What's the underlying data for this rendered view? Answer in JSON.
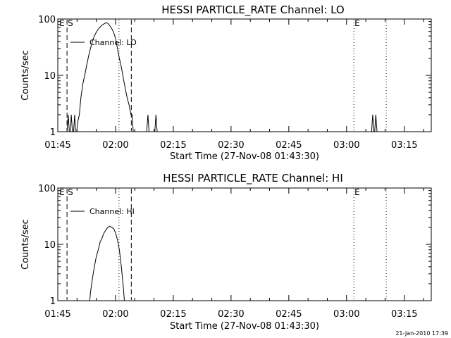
{
  "chart_data": [
    {
      "type": "line",
      "title": "HESSI PARTICLE_RATE Channel: LO",
      "ylabel": "Counts/sec",
      "xlabel": "Start Time (27-Nov-08 01:43:30)",
      "yscale": "log",
      "ylim": [
        1,
        100
      ],
      "yticks": [
        {
          "value": 1,
          "label": "1"
        },
        {
          "value": 10,
          "label": "10"
        },
        {
          "value": 100,
          "label": "100"
        }
      ],
      "xlim_minutes": [
        105,
        202
      ],
      "xticks": [
        {
          "value": 105,
          "label": "01:45"
        },
        {
          "value": 120,
          "label": "02:00"
        },
        {
          "value": 135,
          "label": "02:15"
        },
        {
          "value": 150,
          "label": "02:30"
        },
        {
          "value": 165,
          "label": "02:45"
        },
        {
          "value": 180,
          "label": "03:00"
        },
        {
          "value": 195,
          "label": "03:15"
        }
      ],
      "legend": {
        "label": "Channel: LO",
        "position": "top-left"
      },
      "markers": [
        {
          "label": "E",
          "x": 105.2,
          "style": "none"
        },
        {
          "label": "S",
          "x": 107.4,
          "style": "dashed"
        },
        {
          "label": "",
          "x": 120.9,
          "style": "dotted"
        },
        {
          "label": "",
          "x": 124.1,
          "style": "dashed"
        },
        {
          "label": "E",
          "x": 181.9,
          "style": "dotted"
        },
        {
          "label": "",
          "x": 190.3,
          "style": "dotted"
        }
      ],
      "series": [
        {
          "x": [
            107.4,
            107.7,
            108.0,
            108.3,
            108.5,
            108.8,
            109.1,
            109.4,
            109.6,
            109.9,
            110.2,
            110.6,
            111.0,
            111.5,
            112.0,
            112.5,
            113.0,
            113.5,
            114.0,
            114.5,
            115.0,
            115.5,
            116.0,
            116.5,
            117.0,
            117.5,
            118.0,
            118.5,
            119.0,
            119.5,
            120.0,
            120.5,
            121.0,
            121.5,
            122.0,
            122.5,
            123.0,
            123.5,
            124.0,
            124.3,
            124.6,
            124.9,
            125.2,
            125.5,
            125.8,
            126.1,
            126.4,
            126.7,
            127.0,
            127.3,
            128.1,
            128.4,
            128.7,
            130.2,
            130.5,
            130.8,
            170.0,
            186.5,
            186.8,
            187.1,
            187.3,
            187.6,
            187.9
          ],
          "y": [
            1,
            2,
            1,
            1,
            2,
            1,
            1,
            2,
            1,
            1,
            1.5,
            2,
            4,
            7,
            10,
            15,
            22,
            30,
            40,
            50,
            58,
            66,
            72,
            78,
            82,
            86,
            84,
            76,
            68,
            58,
            45,
            30,
            20,
            14,
            9,
            6,
            4,
            3,
            2,
            2,
            1,
            1,
            1,
            1,
            1,
            1,
            1,
            1,
            1,
            1,
            1,
            2,
            1,
            1,
            2,
            1,
            1,
            1,
            2,
            1,
            1,
            2,
            1
          ]
        }
      ]
    },
    {
      "type": "line",
      "title": "HESSI PARTICLE_RATE Channel: HI",
      "ylabel": "Counts/sec",
      "xlabel": "Start Time (27-Nov-08 01:43:30)",
      "yscale": "log",
      "ylim": [
        1,
        100
      ],
      "yticks": [
        {
          "value": 1,
          "label": "1"
        },
        {
          "value": 10,
          "label": "10"
        },
        {
          "value": 100,
          "label": "100"
        }
      ],
      "xlim_minutes": [
        105,
        202
      ],
      "xticks": [
        {
          "value": 105,
          "label": "01:45"
        },
        {
          "value": 120,
          "label": "02:00"
        },
        {
          "value": 135,
          "label": "02:15"
        },
        {
          "value": 150,
          "label": "02:30"
        },
        {
          "value": 165,
          "label": "02:45"
        },
        {
          "value": 180,
          "label": "03:00"
        },
        {
          "value": 195,
          "label": "03:15"
        }
      ],
      "legend": {
        "label": "Channel: HI",
        "position": "top-left"
      },
      "markers": [
        {
          "label": "E",
          "x": 105.2,
          "style": "none"
        },
        {
          "label": "S",
          "x": 107.4,
          "style": "dashed"
        },
        {
          "label": "",
          "x": 120.9,
          "style": "dotted"
        },
        {
          "label": "",
          "x": 124.1,
          "style": "dashed"
        },
        {
          "label": "E",
          "x": 181.9,
          "style": "dotted"
        },
        {
          "label": "",
          "x": 190.3,
          "style": "dotted"
        }
      ],
      "series": [
        {
          "x": [
            113.3,
            113.5,
            114.0,
            114.5,
            115.0,
            115.5,
            116.0,
            116.5,
            117.0,
            117.5,
            118.0,
            118.5,
            119.0,
            119.5,
            120.0,
            120.5,
            121.0,
            121.5,
            122.0,
            122.3
          ],
          "y": [
            1,
            1.4,
            2.5,
            4,
            6,
            8,
            11,
            13,
            16,
            18,
            20,
            21,
            20,
            19,
            16,
            12,
            8,
            4,
            1.8,
            1
          ]
        }
      ]
    }
  ],
  "stamp": "21-Jan-2010 17:39"
}
